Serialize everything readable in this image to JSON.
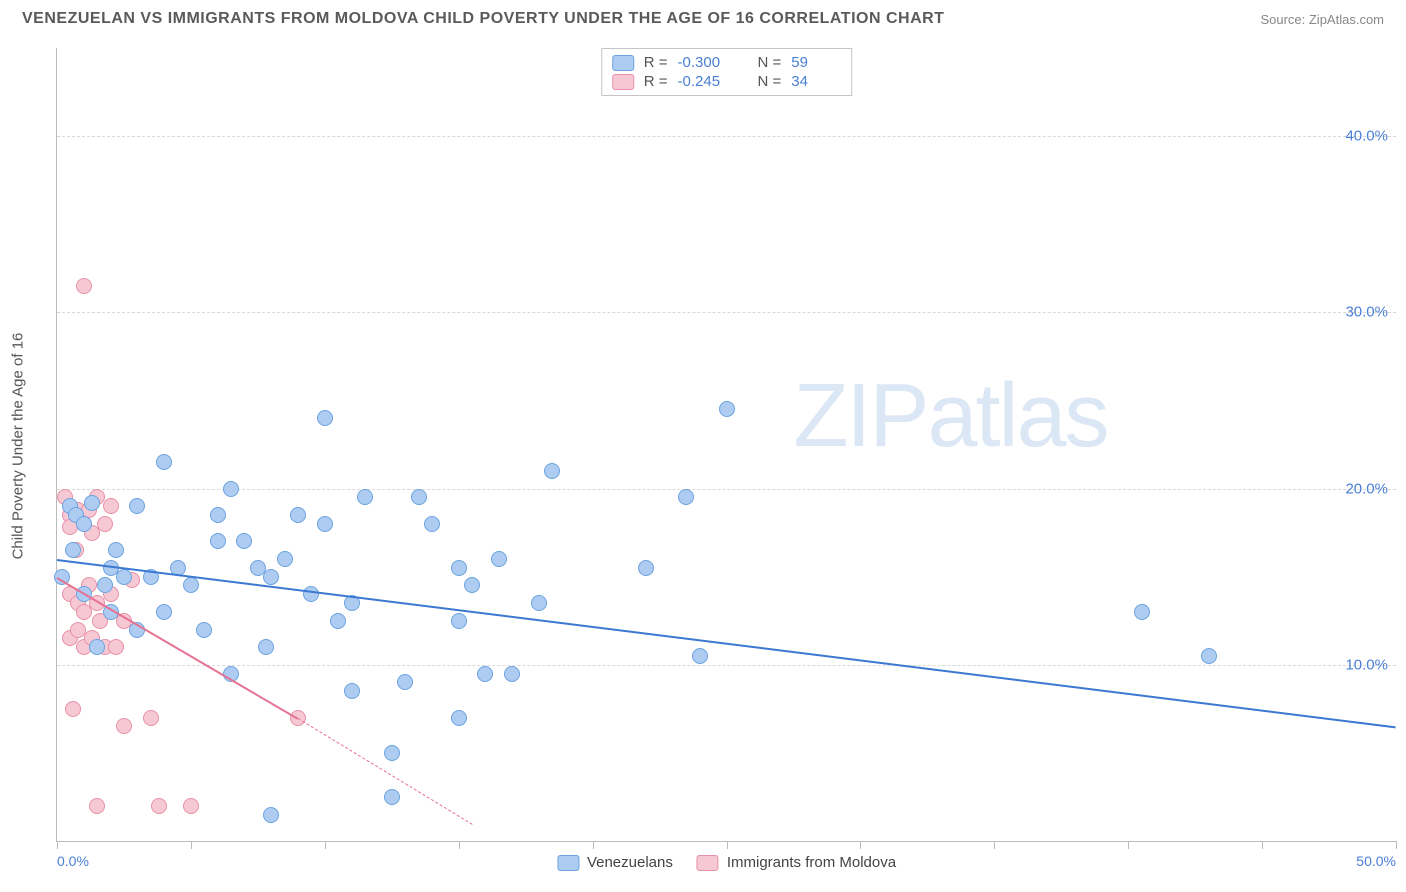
{
  "title": "VENEZUELAN VS IMMIGRANTS FROM MOLDOVA CHILD POVERTY UNDER THE AGE OF 16 CORRELATION CHART",
  "source": "Source: ZipAtlas.com",
  "watermark": {
    "zip": "ZIP",
    "atlas": "atlas"
  },
  "y_axis_title": "Child Poverty Under the Age of 16",
  "chart": {
    "type": "scatter",
    "xlim": [
      0,
      50
    ],
    "ylim": [
      0,
      45
    ],
    "background": "#ffffff",
    "grid_color": "#d8d8d8",
    "axis_color": "#bbbbbb",
    "yticks": [
      10,
      20,
      30,
      40
    ],
    "ytick_labels": [
      "10.0%",
      "20.0%",
      "30.0%",
      "40.0%"
    ],
    "xticks": [
      0,
      5,
      10,
      15,
      20,
      25,
      30,
      35,
      40,
      45,
      50
    ],
    "x_first_label": "0.0%",
    "x_last_label": "50.0%",
    "marker_radius": 8,
    "label_color": "#4a7fd6",
    "label_fontsize": 15
  },
  "series": [
    {
      "name": "Venezuelans",
      "fill": "#aeccf1",
      "stroke": "#6ba3e0",
      "line_color": "#3b78d1",
      "r_value": "-0.300",
      "n_value": "59",
      "trend": {
        "x1": 0,
        "y1": 16.0,
        "x2": 50,
        "y2": 6.5
      },
      "points": [
        [
          0.5,
          19.0
        ],
        [
          0.7,
          18.5
        ],
        [
          1.0,
          18.0
        ],
        [
          1.3,
          19.2
        ],
        [
          0.6,
          16.5
        ],
        [
          1.8,
          14.5
        ],
        [
          2.0,
          15.5
        ],
        [
          2.5,
          15.0
        ],
        [
          3.0,
          19.0
        ],
        [
          3.5,
          15.0
        ],
        [
          3.0,
          12.0
        ],
        [
          1.5,
          11.0
        ],
        [
          2.0,
          13.0
        ],
        [
          4.0,
          21.5
        ],
        [
          4.5,
          15.5
        ],
        [
          5.0,
          14.5
        ],
        [
          5.5,
          12.0
        ],
        [
          6.0,
          18.5
        ],
        [
          6.5,
          20.0
        ],
        [
          6.0,
          17.0
        ],
        [
          7.0,
          17.0
        ],
        [
          7.5,
          15.5
        ],
        [
          8.0,
          15.0
        ],
        [
          8.5,
          16.0
        ],
        [
          8.0,
          1.5
        ],
        [
          9.0,
          18.5
        ],
        [
          9.5,
          14.0
        ],
        [
          10.0,
          18.0
        ],
        [
          10.0,
          24.0
        ],
        [
          10.5,
          12.5
        ],
        [
          11.0,
          8.5
        ],
        [
          11.0,
          13.5
        ],
        [
          11.5,
          19.5
        ],
        [
          12.5,
          5.0
        ],
        [
          12.5,
          2.5
        ],
        [
          13.0,
          9.0
        ],
        [
          13.5,
          19.5
        ],
        [
          14.0,
          18.0
        ],
        [
          15.0,
          12.5
        ],
        [
          15.0,
          15.5
        ],
        [
          15.5,
          14.5
        ],
        [
          15.0,
          7.0
        ],
        [
          16.0,
          9.5
        ],
        [
          16.5,
          16.0
        ],
        [
          17.0,
          9.5
        ],
        [
          18.0,
          13.5
        ],
        [
          18.5,
          21.0
        ],
        [
          22.0,
          15.5
        ],
        [
          23.5,
          19.5
        ],
        [
          24.0,
          10.5
        ],
        [
          25.0,
          24.5
        ],
        [
          40.5,
          13.0
        ],
        [
          43.0,
          10.5
        ],
        [
          0.2,
          15.0
        ],
        [
          1.0,
          14.0
        ],
        [
          2.2,
          16.5
        ],
        [
          4.0,
          13.0
        ],
        [
          6.5,
          9.5
        ],
        [
          7.8,
          11.0
        ]
      ]
    },
    {
      "name": "Immigrants from Moldova",
      "fill": "#f6c8d3",
      "stroke": "#e890a8",
      "line_color": "#e57394",
      "r_value": "-0.245",
      "n_value": "34",
      "trend": {
        "x1": 0,
        "y1": 15.0,
        "x2": 9.0,
        "y2": 7.0
      },
      "trend_ext": {
        "x1": 9.0,
        "y1": 7.0,
        "x2": 15.5,
        "y2": 1.0
      },
      "points": [
        [
          0.3,
          19.5
        ],
        [
          0.5,
          18.5
        ],
        [
          0.5,
          17.8
        ],
        [
          0.8,
          18.8
        ],
        [
          1.0,
          18.0
        ],
        [
          1.2,
          18.8
        ],
        [
          0.7,
          16.5
        ],
        [
          1.3,
          17.5
        ],
        [
          1.5,
          19.5
        ],
        [
          1.8,
          18.0
        ],
        [
          2.0,
          19.0
        ],
        [
          0.5,
          14.0
        ],
        [
          0.8,
          13.5
        ],
        [
          1.0,
          13.0
        ],
        [
          1.2,
          14.5
        ],
        [
          1.5,
          13.5
        ],
        [
          0.5,
          11.5
        ],
        [
          0.8,
          12.0
        ],
        [
          1.0,
          11.0
        ],
        [
          1.3,
          11.5
        ],
        [
          1.6,
          12.5
        ],
        [
          1.8,
          11.0
        ],
        [
          2.2,
          11.0
        ],
        [
          2.5,
          12.5
        ],
        [
          2.0,
          14.0
        ],
        [
          0.6,
          7.5
        ],
        [
          1.0,
          31.5
        ],
        [
          1.5,
          2.0
        ],
        [
          2.5,
          6.5
        ],
        [
          3.5,
          7.0
        ],
        [
          3.8,
          2.0
        ],
        [
          5.0,
          2.0
        ],
        [
          9.0,
          7.0
        ],
        [
          2.8,
          14.8
        ]
      ]
    }
  ],
  "stats_legend": {
    "r_label": "R =",
    "n_label": "N ="
  },
  "bottom_legend": {
    "items": [
      "Venezuelans",
      "Immigrants from Moldova"
    ]
  }
}
